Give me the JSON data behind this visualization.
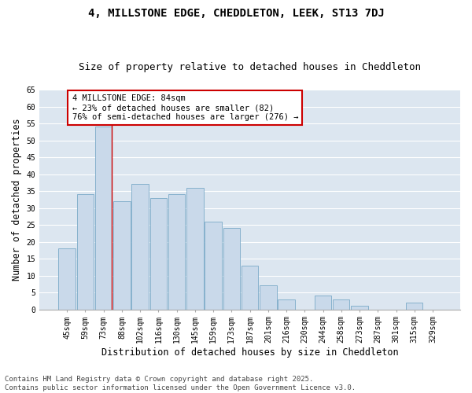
{
  "title_line1": "4, MILLSTONE EDGE, CHEDDLETON, LEEK, ST13 7DJ",
  "title_line2": "Size of property relative to detached houses in Cheddleton",
  "xlabel": "Distribution of detached houses by size in Cheddleton",
  "ylabel": "Number of detached properties",
  "bar_color": "#c9d9ea",
  "bar_edge_color": "#7aaac8",
  "background_color": "#dce6f0",
  "grid_color": "#ffffff",
  "categories": [
    "45sqm",
    "59sqm",
    "73sqm",
    "88sqm",
    "102sqm",
    "116sqm",
    "130sqm",
    "145sqm",
    "159sqm",
    "173sqm",
    "187sqm",
    "201sqm",
    "216sqm",
    "230sqm",
    "244sqm",
    "258sqm",
    "273sqm",
    "287sqm",
    "301sqm",
    "315sqm",
    "329sqm"
  ],
  "values": [
    18,
    34,
    54,
    32,
    37,
    33,
    34,
    36,
    26,
    24,
    13,
    7,
    3,
    0,
    4,
    3,
    1,
    0,
    0,
    2,
    0
  ],
  "ylim": [
    0,
    65
  ],
  "yticks": [
    0,
    5,
    10,
    15,
    20,
    25,
    30,
    35,
    40,
    45,
    50,
    55,
    60,
    65
  ],
  "marker_bar_index": 2,
  "annotation_text": "4 MILLSTONE EDGE: 84sqm\n← 23% of detached houses are smaller (82)\n76% of semi-detached houses are larger (276) →",
  "annotation_box_color": "#ffffff",
  "annotation_box_edge": "#cc0000",
  "marker_line_color": "#cc0000",
  "footer_line1": "Contains HM Land Registry data © Crown copyright and database right 2025.",
  "footer_line2": "Contains public sector information licensed under the Open Government Licence v3.0.",
  "title_fontsize": 10,
  "subtitle_fontsize": 9,
  "axis_label_fontsize": 8.5,
  "tick_fontsize": 7,
  "annotation_fontsize": 7.5,
  "footer_fontsize": 6.5
}
